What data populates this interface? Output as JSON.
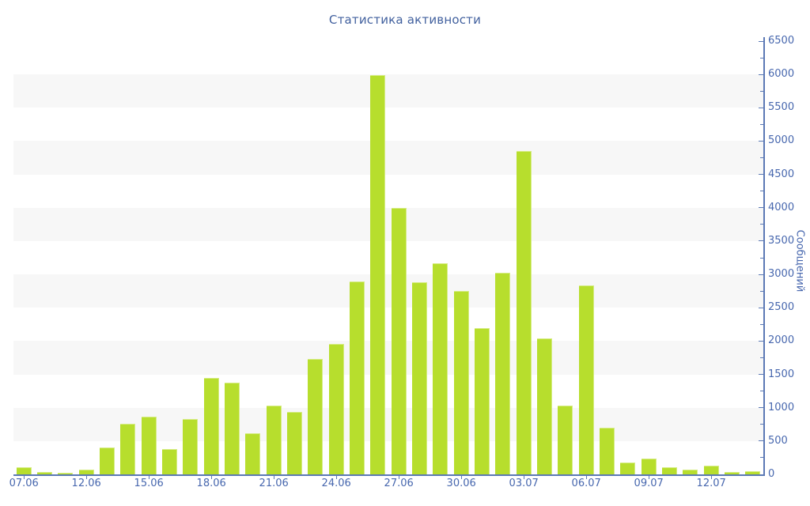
{
  "chart_data": {
    "type": "bar",
    "title": "Статистика активности",
    "ylabel": "Сообщений",
    "xlabel": "",
    "ylim": [
      0,
      6500
    ],
    "y_tick_step": 500,
    "y_minor_tick_step": 250,
    "grid": "alternating-horizontal-bands",
    "legend": "none",
    "values": [
      110,
      30,
      20,
      70,
      400,
      760,
      860,
      380,
      825,
      1450,
      1370,
      615,
      1035,
      935,
      1730,
      1955,
      2895,
      5985,
      4000,
      2880,
      3170,
      2755,
      2200,
      3025,
      4850,
      2035,
      1035,
      2835,
      705,
      175,
      235,
      110,
      70,
      125,
      40,
      50
    ],
    "x_ticks": [
      {
        "index": 0,
        "label": "07.06"
      },
      {
        "index": 3,
        "label": "12.06"
      },
      {
        "index": 6,
        "label": "15.06"
      },
      {
        "index": 9,
        "label": "18.06"
      },
      {
        "index": 12,
        "label": "21.06"
      },
      {
        "index": 15,
        "label": "24.06"
      },
      {
        "index": 18,
        "label": "27.06"
      },
      {
        "index": 21,
        "label": "30.06"
      },
      {
        "index": 24,
        "label": "03.07"
      },
      {
        "index": 27,
        "label": "06.07"
      },
      {
        "index": 30,
        "label": "09.07"
      },
      {
        "index": 33,
        "label": "12.07"
      }
    ],
    "plot_bands": [
      [
        500,
        1000
      ],
      [
        1500,
        2000
      ],
      [
        2500,
        3000
      ],
      [
        3500,
        4000
      ],
      [
        4500,
        5000
      ],
      [
        5500,
        6000
      ]
    ],
    "colors": {
      "bar": "#b7de2d",
      "bar_highlight": "#d6ec85",
      "axis": "#5b79b5",
      "tick_label": "#4767ae",
      "title": "#41609e",
      "band": "#f7f7f7",
      "background": "#ffffff"
    }
  }
}
